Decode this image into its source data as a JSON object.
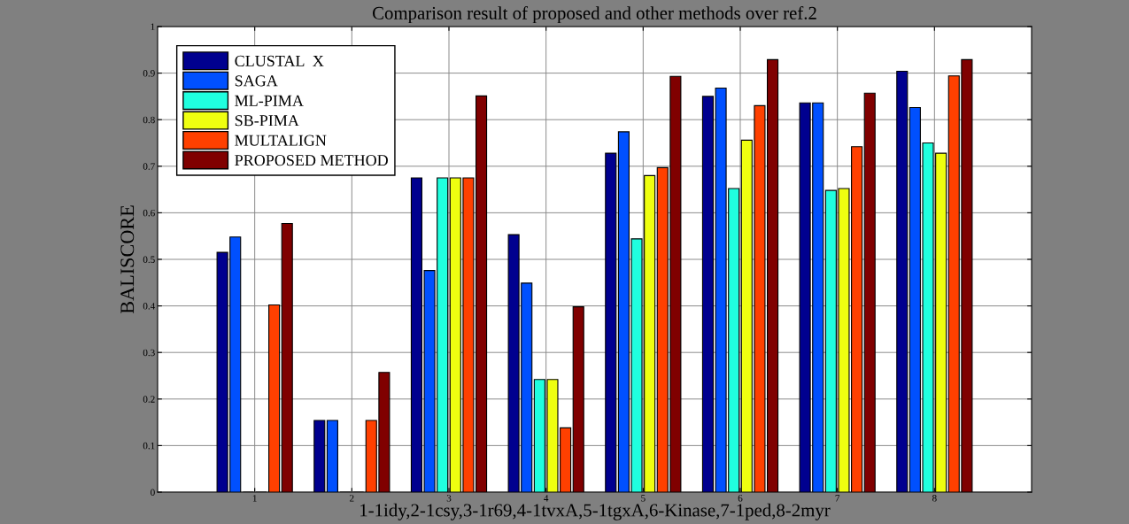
{
  "chart_data": {
    "type": "bar",
    "title": "Comparison result of proposed and other methods over ref.2",
    "xlabel": "1-1idy,2-1csy,3-1r69,4-1tvxA,5-1tgxA,6-Kinase,7-1ped,8-2myr",
    "ylabel": "BALISCORE",
    "x": [
      1,
      2,
      3,
      4,
      5,
      6,
      7,
      8
    ],
    "series": [
      {
        "name": "CLUSTAL  X",
        "color": "#00008f",
        "values": [
          0.515,
          0.154,
          0.675,
          0.553,
          0.728,
          0.85,
          0.836,
          0.904
        ]
      },
      {
        "name": "SAGA",
        "color": "#0050ff",
        "values": [
          0.548,
          0.154,
          0.476,
          0.449,
          0.774,
          0.868,
          0.836,
          0.826
        ]
      },
      {
        "name": "ML-PIMA",
        "color": "#20ffdf",
        "values": [
          0,
          0,
          0.675,
          0.242,
          0.544,
          0.652,
          0.648,
          0.75
        ]
      },
      {
        "name": "SB-PIMA",
        "color": "#efff10",
        "values": [
          0,
          0,
          0.675,
          0.242,
          0.68,
          0.756,
          0.652,
          0.728
        ]
      },
      {
        "name": "MULTALIGN",
        "color": "#ff4000",
        "values": [
          0.402,
          0.154,
          0.675,
          0.138,
          0.697,
          0.83,
          0.742,
          0.894
        ]
      },
      {
        "name": "PROPOSED METHOD",
        "color": "#800000",
        "values": [
          0.577,
          0.257,
          0.851,
          0.398,
          0.893,
          0.929,
          0.857,
          0.929
        ]
      }
    ],
    "xlim": [
      0,
      9
    ],
    "xticks": [
      1,
      2,
      3,
      4,
      5,
      6,
      7,
      8
    ],
    "ylim": [
      0,
      1
    ],
    "yticks": [
      0,
      0.1,
      0.2,
      0.3,
      0.4,
      0.5,
      0.6,
      0.7,
      0.8,
      0.9,
      1
    ],
    "grid": true,
    "legend": "top left"
  }
}
